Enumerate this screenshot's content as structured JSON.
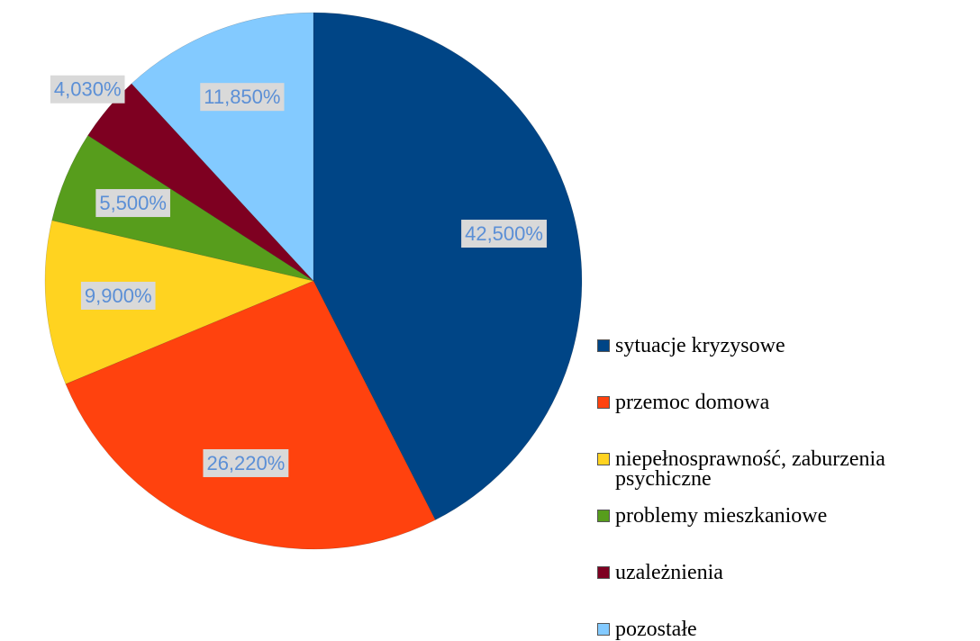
{
  "chart_data": {
    "type": "pie",
    "categories": [
      "sytuacje kryzysowe",
      "przemoc domowa",
      "niepełnosprawność, zaburzenia psychiczne",
      "problemy mieszkaniowe",
      "uzależnienia",
      "pozostałe"
    ],
    "values": [
      42.5,
      26.22,
      9.9,
      5.5,
      4.03,
      11.85
    ],
    "value_labels": [
      "42,500%",
      "26,220%",
      "9,900%",
      "5,500%",
      "4,030%",
      "11,850%"
    ],
    "colors": [
      "#004586",
      "#ff420e",
      "#ffd320",
      "#579d1c",
      "#7e0021",
      "#83caff"
    ],
    "legend": "right"
  }
}
